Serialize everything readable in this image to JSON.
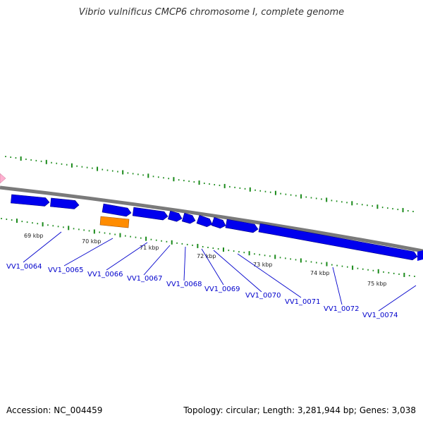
{
  "title": "Vibrio vulnificus CMCP6 chromosome I, complete genome",
  "footer": {
    "accession": "Accession: NC_004459",
    "summary": "Topology: circular; Length: 3,281,944 bp; Genes: 3,038"
  },
  "colors": {
    "backbone": "#7a7a7a",
    "gene": "#0000ee",
    "gene_outline": "#000080",
    "highlight": "#ff8c00",
    "ticks": "#1a8a1a",
    "label": "#0000cc",
    "marker": "#ffb0d0"
  },
  "scale_labels": [
    "69 kbp",
    "70 kbp",
    "71 kbp",
    "72 kbp",
    "73 kbp",
    "74 kbp",
    "75 kbp"
  ],
  "genes": [
    {
      "label": "VV1_0064"
    },
    {
      "label": "VV1_0065"
    },
    {
      "label": "VV1_0066"
    },
    {
      "label": "VV1_0067"
    },
    {
      "label": "VV1_0068"
    },
    {
      "label": "VV1_0069"
    },
    {
      "label": "VV1_0070"
    },
    {
      "label": "VV1_0071"
    },
    {
      "label": "VV1_0072"
    },
    {
      "label": "VV1_0074"
    }
  ]
}
